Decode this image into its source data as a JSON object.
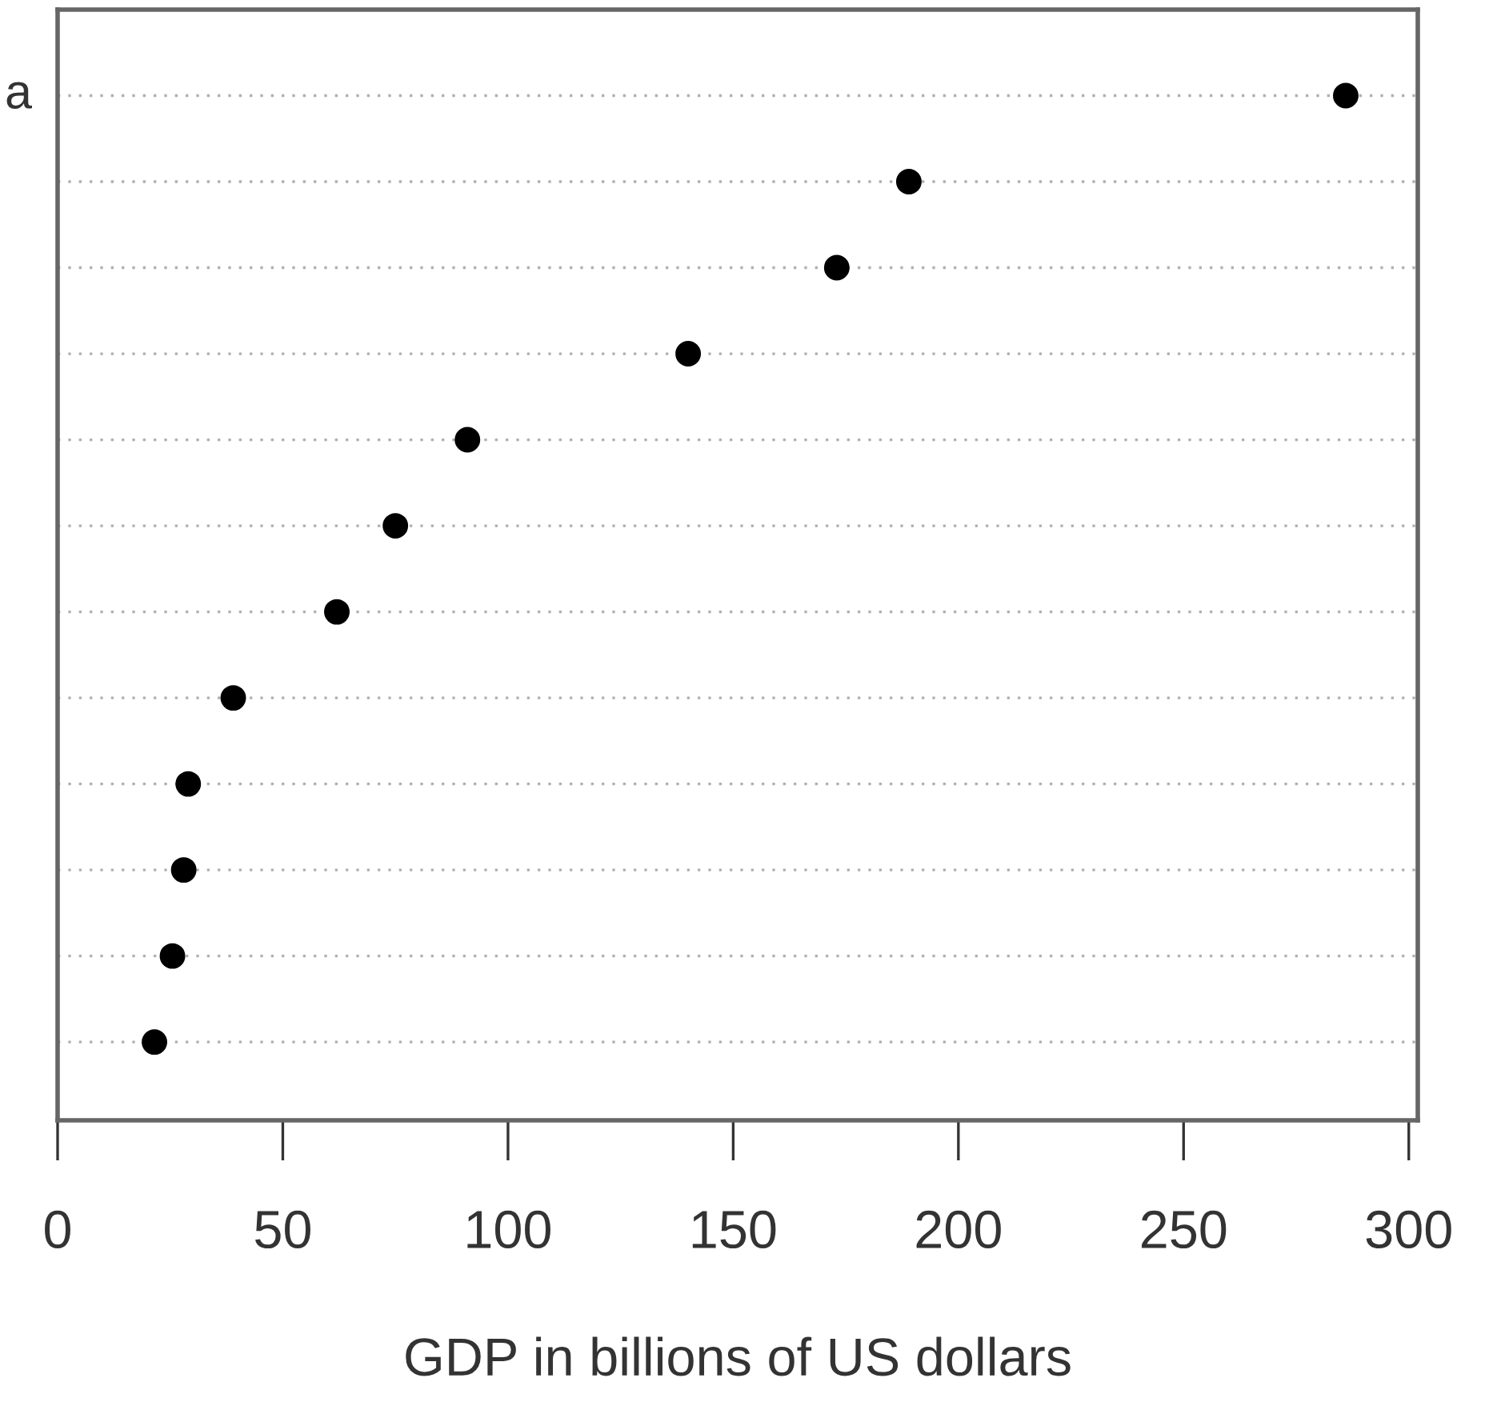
{
  "chart_data": {
    "type": "scatter",
    "orientation": "horizontal",
    "xlabel": "GDP in billions of US dollars",
    "categories": [
      "a",
      null,
      null,
      null,
      null,
      null,
      null,
      null,
      null,
      null,
      null,
      null
    ],
    "values": [
      286,
      189,
      173,
      140,
      91,
      75,
      62,
      39,
      29,
      28,
      25.5,
      21.5
    ],
    "color": "#000000",
    "marker": "circle",
    "grid": "y",
    "xlim": [
      0,
      302
    ],
    "xticks": [
      0,
      50,
      100,
      150,
      200,
      250,
      300
    ]
  }
}
